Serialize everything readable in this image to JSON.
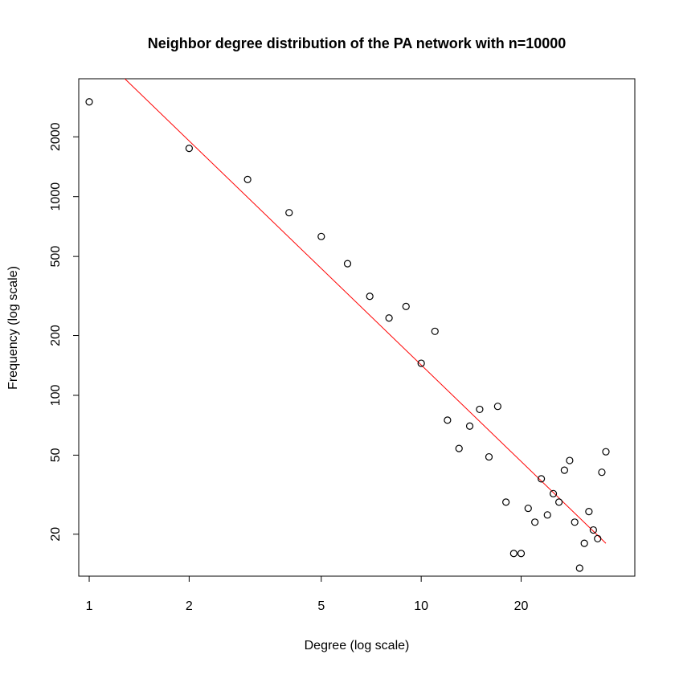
{
  "chart_data": {
    "type": "scatter",
    "title": "Neighbor degree distribution of the PA network with n=10000",
    "xlabel": "Degree (log scale)",
    "ylabel": "Frequency (log scale)",
    "log_x": true,
    "log_y": true,
    "xlim": [
      0.93,
      44
    ],
    "ylim": [
      12.3,
      3920
    ],
    "x_ticks": [
      1,
      2,
      5,
      10,
      20
    ],
    "x_tick_labels": [
      "1",
      "2",
      "5",
      "10",
      "20"
    ],
    "y_ticks": [
      20,
      50,
      100,
      200,
      500,
      1000,
      2000
    ],
    "y_tick_labels": [
      "20",
      "50",
      "100",
      "200",
      "500",
      "1000",
      "2000"
    ],
    "grid": false,
    "series": [
      {
        "points": [
          [
            1,
            3000
          ],
          [
            2,
            1750
          ],
          [
            3,
            1220
          ],
          [
            4,
            830
          ],
          [
            5,
            630
          ],
          [
            6,
            460
          ],
          [
            7,
            315
          ],
          [
            8,
            245
          ],
          [
            9,
            280
          ],
          [
            10,
            145
          ],
          [
            11,
            210
          ],
          [
            12,
            75
          ],
          [
            13,
            54
          ],
          [
            14,
            70
          ],
          [
            15,
            85
          ],
          [
            16,
            49
          ],
          [
            17,
            88
          ],
          [
            18,
            29
          ],
          [
            19,
            16
          ],
          [
            20,
            16
          ],
          [
            21,
            27
          ],
          [
            22,
            23
          ],
          [
            23,
            38
          ],
          [
            24,
            25
          ],
          [
            25,
            32
          ],
          [
            26,
            29
          ],
          [
            27,
            42
          ],
          [
            28,
            47
          ],
          [
            29,
            23
          ],
          [
            30,
            13.5
          ],
          [
            31,
            18
          ],
          [
            32,
            26
          ],
          [
            33,
            21
          ],
          [
            34,
            19
          ],
          [
            35,
            41
          ],
          [
            36,
            52
          ]
        ]
      }
    ],
    "fit_line": {
      "color": "#ff0000",
      "points": [
        [
          1.28,
          3920
        ],
        [
          36,
          18
        ]
      ]
    }
  }
}
